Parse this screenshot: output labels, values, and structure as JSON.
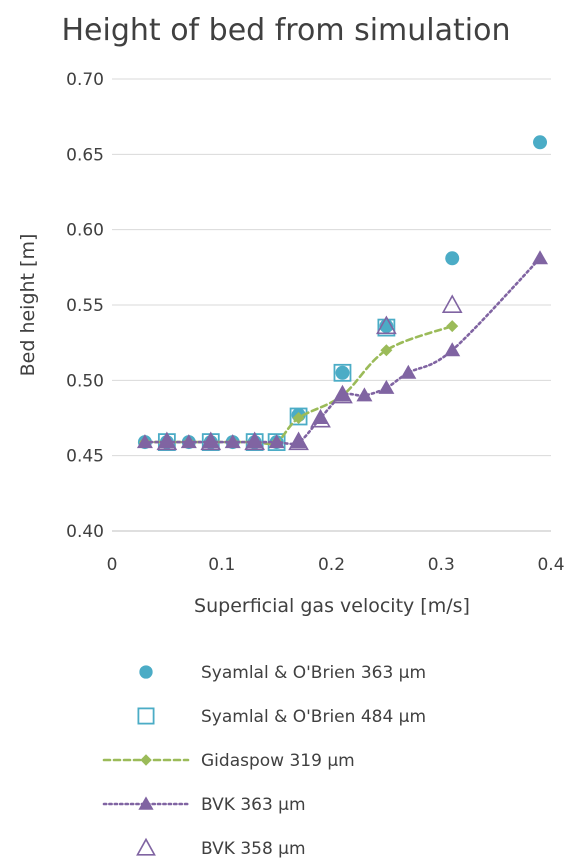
{
  "chart_data": {
    "type": "scatter",
    "title": "Height of bed from simulation",
    "xlabel": "Superficial gas velocity [m/s]",
    "ylabel": "Bed height [m]",
    "xlim": [
      0,
      0.4
    ],
    "ylim": [
      0.4,
      0.7
    ],
    "x_ticks": [
      "0",
      "0.1",
      "0.2",
      "0.3",
      "0.4"
    ],
    "y_ticks": [
      "0.40",
      "0.45",
      "0.50",
      "0.55",
      "0.60",
      "0.65",
      "0.70"
    ],
    "grid": "horizontal",
    "legend_position": "bottom",
    "series": [
      {
        "name": "Syamlal & O'Brien 363 µm",
        "marker": "circle",
        "line": "none",
        "color": "#4BACC6",
        "x": [
          0.03,
          0.05,
          0.07,
          0.09,
          0.11,
          0.13,
          0.15,
          0.17,
          0.21,
          0.25,
          0.31,
          0.39
        ],
        "y": [
          0.459,
          0.459,
          0.459,
          0.459,
          0.459,
          0.459,
          0.459,
          0.477,
          0.505,
          0.536,
          0.581,
          0.658
        ]
      },
      {
        "name": "Syamlal & O'Brien 484 µm",
        "marker": "square-open",
        "line": "none",
        "color": "#4BACC6",
        "x": [
          0.05,
          0.09,
          0.13,
          0.15,
          0.17,
          0.21,
          0.25
        ],
        "y": [
          0.459,
          0.459,
          0.459,
          0.459,
          0.476,
          0.505,
          0.535
        ]
      },
      {
        "name": "Gidaspow 319 µm",
        "marker": "diamond",
        "line": "dashed",
        "color": "#9BBB59",
        "x": [
          0.03,
          0.05,
          0.07,
          0.09,
          0.11,
          0.13,
          0.15,
          0.17,
          0.21,
          0.25,
          0.31
        ],
        "y": [
          0.459,
          0.459,
          0.459,
          0.459,
          0.459,
          0.459,
          0.459,
          0.475,
          0.49,
          0.52,
          0.536
        ]
      },
      {
        "name": "BVK 363 µm",
        "marker": "triangle",
        "line": "dotted",
        "color": "#8064A2",
        "x": [
          0.03,
          0.05,
          0.07,
          0.09,
          0.11,
          0.13,
          0.15,
          0.17,
          0.19,
          0.21,
          0.23,
          0.25,
          0.27,
          0.31,
          0.39
        ],
        "y": [
          0.459,
          0.459,
          0.459,
          0.459,
          0.459,
          0.459,
          0.459,
          0.459,
          0.475,
          0.49,
          0.49,
          0.495,
          0.505,
          0.52,
          0.581
        ]
      },
      {
        "name": "BVK 358 µm",
        "marker": "triangle-open",
        "line": "none",
        "color": "#8064A2",
        "x": [
          0.05,
          0.09,
          0.13,
          0.17,
          0.19,
          0.21,
          0.25,
          0.31
        ],
        "y": [
          0.459,
          0.459,
          0.459,
          0.459,
          0.474,
          0.49,
          0.536,
          0.55
        ]
      }
    ]
  }
}
